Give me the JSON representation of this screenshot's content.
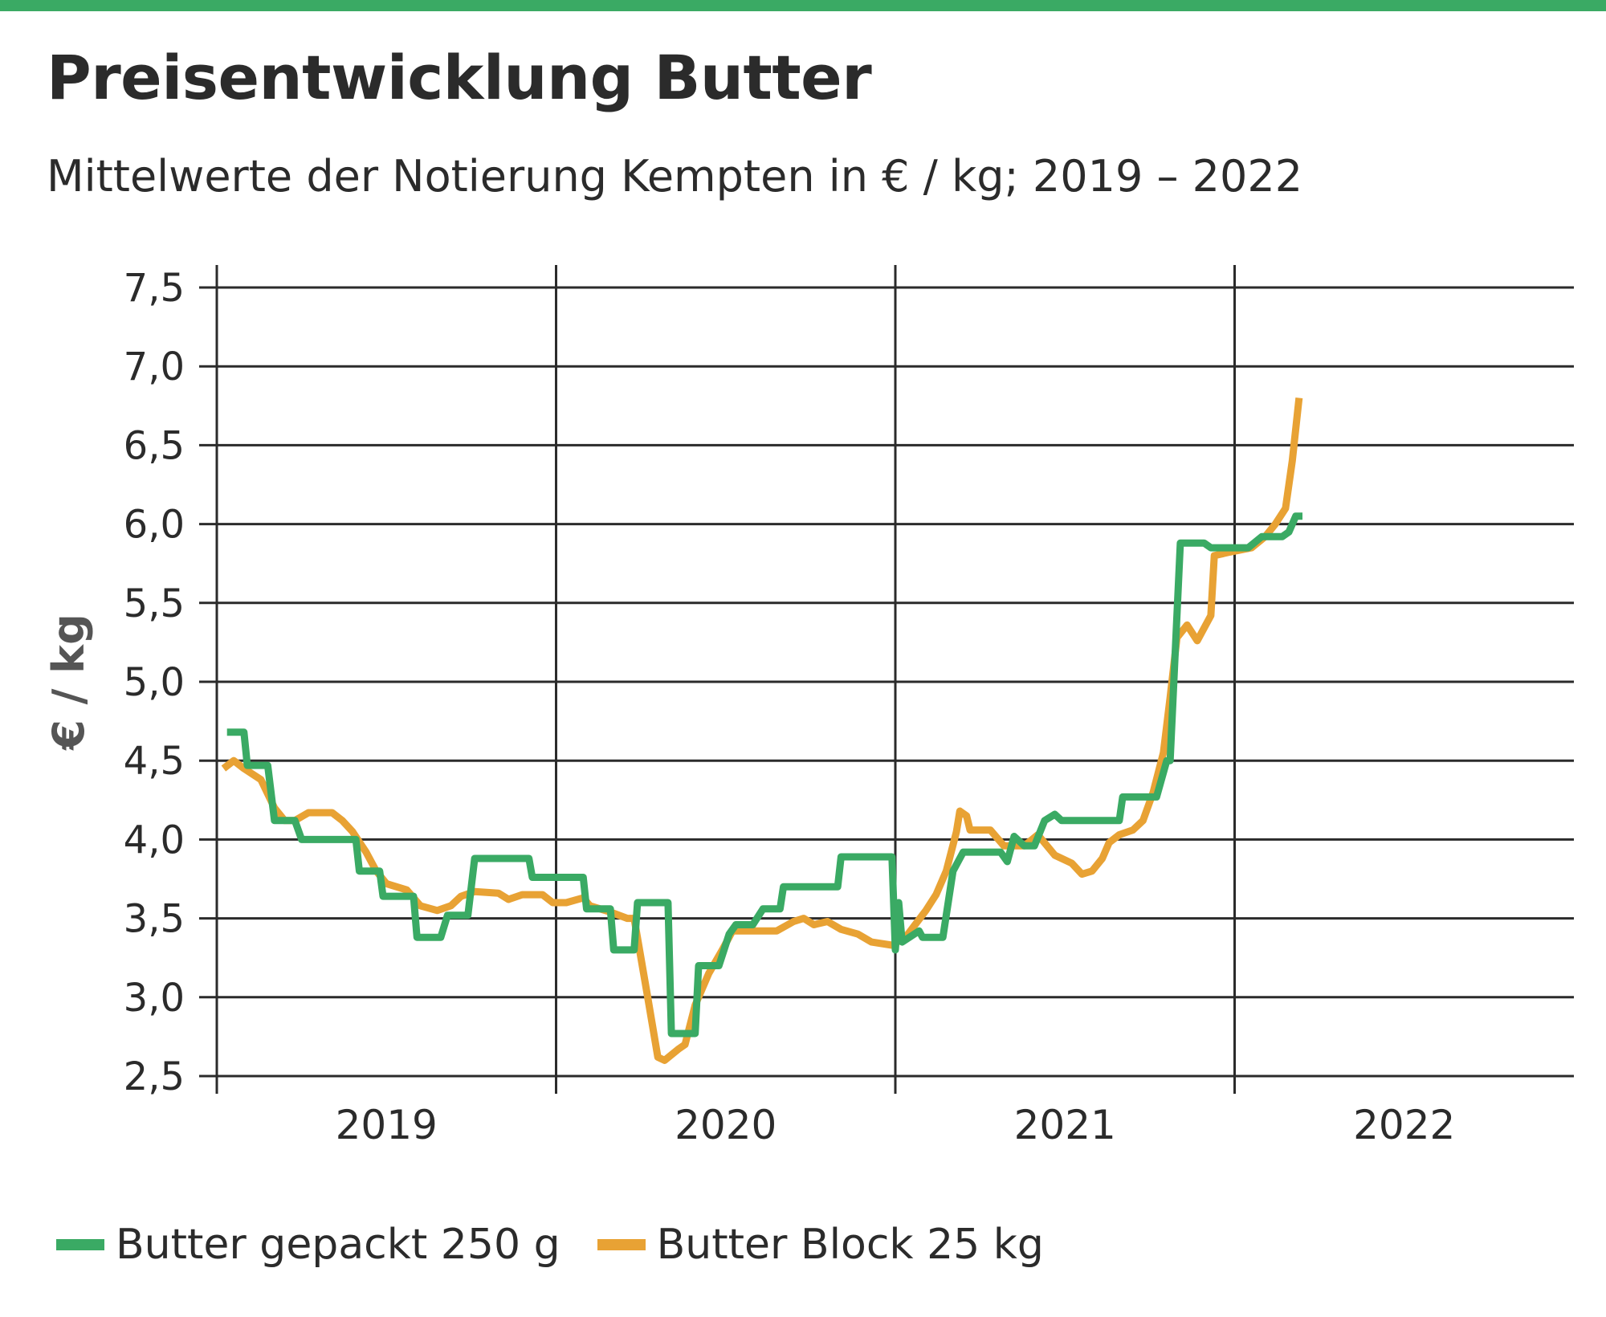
{
  "colors": {
    "accent_bar": "#3aaa64",
    "gepackt": "#3aaa64",
    "block": "#e8a234",
    "grid": "#2b2b2b"
  },
  "header": {
    "title": "Preisentwicklung Butter",
    "subtitle": "Mittelwerte der Notierung Kempten in € / kg; 2019 – 2022"
  },
  "chart_data": {
    "type": "line",
    "title": "Preisentwicklung Butter",
    "subtitle": "Mittelwerte der Notierung Kempten in € / kg; 2019 – 2022",
    "xlabel": "",
    "ylabel": "€ / kg",
    "xlim": [
      2019.0,
      2023.0
    ],
    "ylim": [
      2.5,
      7.5
    ],
    "y_ticks": [
      2.5,
      3.0,
      3.5,
      4.0,
      4.5,
      5.0,
      5.5,
      6.0,
      6.5,
      7.0,
      7.5
    ],
    "y_tick_labels": [
      "2,5",
      "3,0",
      "3,5",
      "4,0",
      "4,5",
      "5,0",
      "5,5",
      "6,0",
      "6,5",
      "7,0",
      "7,5"
    ],
    "x_tick_labels": [
      {
        "label": "2019",
        "x": 2019.5
      },
      {
        "label": "2020",
        "x": 2020.5
      },
      {
        "label": "2021",
        "x": 2021.5
      },
      {
        "label": "2022",
        "x": 2022.5
      }
    ],
    "x_gridlines": [
      2019.0,
      2020.0,
      2021.0,
      2022.0
    ],
    "grid": "horizontal and year dividers",
    "legend_position": "bottom",
    "series": [
      {
        "name": "Butter gepackt 250 g",
        "color": "#3aaa64",
        "points": [
          [
            2019.03,
            4.68
          ],
          [
            2019.08,
            4.68
          ],
          [
            2019.09,
            4.47
          ],
          [
            2019.15,
            4.47
          ],
          [
            2019.17,
            4.12
          ],
          [
            2019.23,
            4.12
          ],
          [
            2019.25,
            4.0
          ],
          [
            2019.41,
            4.0
          ],
          [
            2019.42,
            3.8
          ],
          [
            2019.48,
            3.8
          ],
          [
            2019.49,
            3.64
          ],
          [
            2019.58,
            3.64
          ],
          [
            2019.59,
            3.38
          ],
          [
            2019.66,
            3.38
          ],
          [
            2019.68,
            3.52
          ],
          [
            2019.74,
            3.52
          ],
          [
            2019.76,
            3.88
          ],
          [
            2019.92,
            3.88
          ],
          [
            2019.93,
            3.76
          ],
          [
            2020.08,
            3.76
          ],
          [
            2020.09,
            3.56
          ],
          [
            2020.16,
            3.56
          ],
          [
            2020.17,
            3.3
          ],
          [
            2020.23,
            3.3
          ],
          [
            2020.24,
            3.6
          ],
          [
            2020.33,
            3.6
          ],
          [
            2020.34,
            2.77
          ],
          [
            2020.41,
            2.77
          ],
          [
            2020.42,
            3.2
          ],
          [
            2020.48,
            3.2
          ],
          [
            2020.51,
            3.4
          ],
          [
            2020.53,
            3.46
          ],
          [
            2020.58,
            3.46
          ],
          [
            2020.61,
            3.56
          ],
          [
            2020.66,
            3.56
          ],
          [
            2020.67,
            3.7
          ],
          [
            2020.83,
            3.7
          ],
          [
            2020.84,
            3.89
          ],
          [
            2020.99,
            3.89
          ],
          [
            2021.0,
            3.3
          ],
          [
            2021.01,
            3.6
          ],
          [
            2021.02,
            3.35
          ],
          [
            2021.07,
            3.42
          ],
          [
            2021.08,
            3.38
          ],
          [
            2021.14,
            3.38
          ],
          [
            2021.17,
            3.8
          ],
          [
            2021.2,
            3.92
          ],
          [
            2021.31,
            3.92
          ],
          [
            2021.33,
            3.86
          ],
          [
            2021.35,
            4.02
          ],
          [
            2021.38,
            3.96
          ],
          [
            2021.41,
            3.96
          ],
          [
            2021.44,
            4.12
          ],
          [
            2021.47,
            4.16
          ],
          [
            2021.49,
            4.12
          ],
          [
            2021.66,
            4.12
          ],
          [
            2021.67,
            4.27
          ],
          [
            2021.77,
            4.27
          ],
          [
            2021.8,
            4.5
          ],
          [
            2021.81,
            4.5
          ],
          [
            2021.84,
            5.88
          ],
          [
            2021.91,
            5.88
          ],
          [
            2021.93,
            5.85
          ],
          [
            2022.04,
            5.85
          ],
          [
            2022.08,
            5.92
          ],
          [
            2022.14,
            5.92
          ],
          [
            2022.16,
            5.95
          ],
          [
            2022.18,
            6.05
          ],
          [
            2022.2,
            6.05
          ]
        ]
      },
      {
        "name": "Butter Block 25 kg",
        "color": "#e8a234",
        "points": [
          [
            2019.02,
            4.45
          ],
          [
            2019.05,
            4.5
          ],
          [
            2019.08,
            4.45
          ],
          [
            2019.13,
            4.38
          ],
          [
            2019.17,
            4.2
          ],
          [
            2019.2,
            4.12
          ],
          [
            2019.23,
            4.12
          ],
          [
            2019.27,
            4.17
          ],
          [
            2019.34,
            4.17
          ],
          [
            2019.37,
            4.12
          ],
          [
            2019.4,
            4.05
          ],
          [
            2019.44,
            3.92
          ],
          [
            2019.47,
            3.8
          ],
          [
            2019.5,
            3.72
          ],
          [
            2019.56,
            3.68
          ],
          [
            2019.6,
            3.58
          ],
          [
            2019.65,
            3.55
          ],
          [
            2019.69,
            3.58
          ],
          [
            2019.72,
            3.64
          ],
          [
            2019.76,
            3.67
          ],
          [
            2019.83,
            3.66
          ],
          [
            2019.86,
            3.62
          ],
          [
            2019.9,
            3.65
          ],
          [
            2019.96,
            3.65
          ],
          [
            2019.99,
            3.6
          ],
          [
            2020.03,
            3.6
          ],
          [
            2020.08,
            3.63
          ],
          [
            2020.1,
            3.58
          ],
          [
            2020.16,
            3.54
          ],
          [
            2020.21,
            3.5
          ],
          [
            2020.23,
            3.5
          ],
          [
            2020.27,
            3.0
          ],
          [
            2020.3,
            2.62
          ],
          [
            2020.32,
            2.6
          ],
          [
            2020.36,
            2.67
          ],
          [
            2020.38,
            2.7
          ],
          [
            2020.41,
            2.95
          ],
          [
            2020.45,
            3.15
          ],
          [
            2020.49,
            3.3
          ],
          [
            2020.52,
            3.42
          ],
          [
            2020.65,
            3.42
          ],
          [
            2020.7,
            3.48
          ],
          [
            2020.73,
            3.5
          ],
          [
            2020.76,
            3.46
          ],
          [
            2020.8,
            3.48
          ],
          [
            2020.84,
            3.43
          ],
          [
            2020.89,
            3.4
          ],
          [
            2020.93,
            3.35
          ],
          [
            2020.99,
            3.33
          ],
          [
            2021.03,
            3.38
          ],
          [
            2021.09,
            3.55
          ],
          [
            2021.12,
            3.65
          ],
          [
            2021.15,
            3.8
          ],
          [
            2021.18,
            4.05
          ],
          [
            2021.19,
            4.18
          ],
          [
            2021.21,
            4.15
          ],
          [
            2021.22,
            4.06
          ],
          [
            2021.28,
            4.06
          ],
          [
            2021.32,
            3.96
          ],
          [
            2021.38,
            3.96
          ],
          [
            2021.42,
            4.03
          ],
          [
            2021.47,
            3.9
          ],
          [
            2021.52,
            3.85
          ],
          [
            2021.55,
            3.78
          ],
          [
            2021.58,
            3.8
          ],
          [
            2021.61,
            3.88
          ],
          [
            2021.63,
            3.98
          ],
          [
            2021.66,
            4.03
          ],
          [
            2021.7,
            4.06
          ],
          [
            2021.73,
            4.12
          ],
          [
            2021.76,
            4.3
          ],
          [
            2021.79,
            4.55
          ],
          [
            2021.81,
            4.9
          ],
          [
            2021.83,
            5.28
          ],
          [
            2021.86,
            5.36
          ],
          [
            2021.89,
            5.26
          ],
          [
            2021.93,
            5.42
          ],
          [
            2021.94,
            5.8
          ],
          [
            2021.98,
            5.82
          ],
          [
            2022.05,
            5.85
          ],
          [
            2022.09,
            5.92
          ],
          [
            2022.12,
            6.0
          ],
          [
            2022.15,
            6.1
          ],
          [
            2022.17,
            6.4
          ],
          [
            2022.19,
            6.8
          ]
        ]
      }
    ]
  }
}
